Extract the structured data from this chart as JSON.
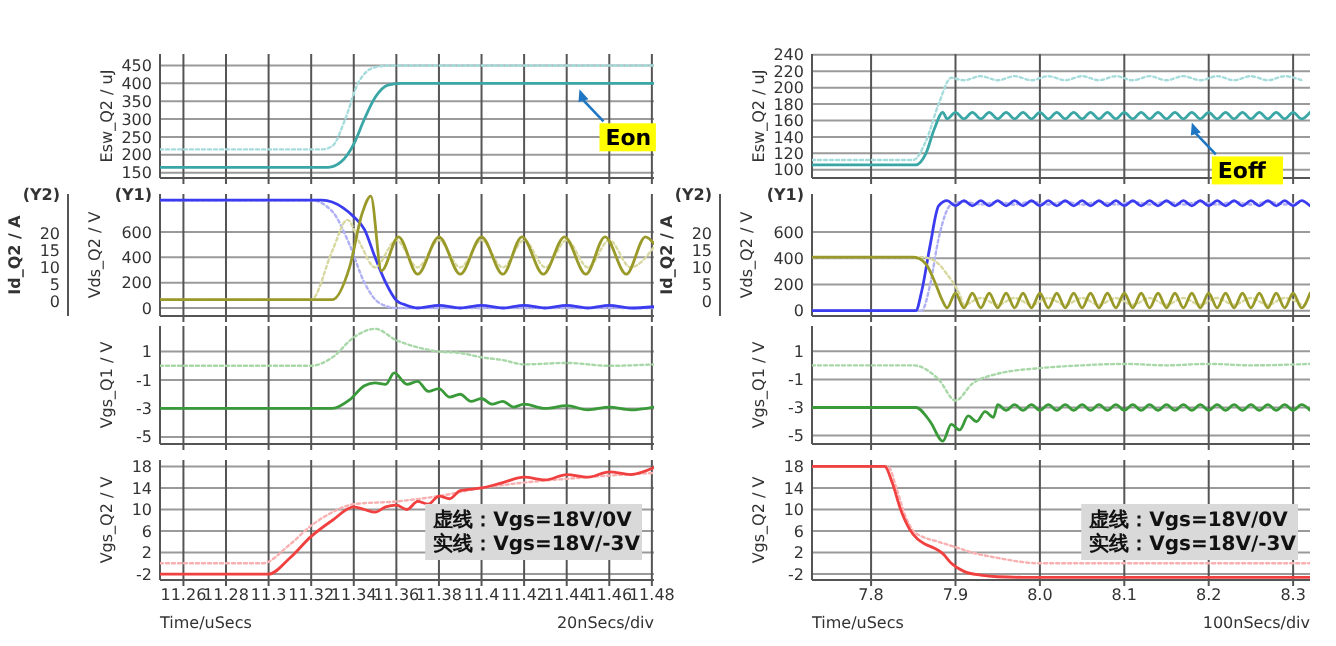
{
  "chart_data": [
    {
      "type": "line",
      "ylabel": "Esw_Q2 / uJ",
      "xlim": [
        11.249,
        11.481
      ],
      "xticks": [
        11.26,
        11.28,
        11.3,
        11.32,
        11.34,
        11.36,
        11.38,
        11.4,
        11.42,
        11.44,
        11.46,
        11.48
      ],
      "ylim": [
        135,
        482
      ],
      "yticks": [
        150,
        200,
        250,
        300,
        350,
        400,
        450
      ],
      "grid": true,
      "tick_labels": "y",
      "series": [
        {
          "color": "#a6dcdc",
          "line_style": "dotted",
          "x": [
            11.249,
            11.325,
            11.33,
            11.336,
            11.342,
            11.35,
            11.358,
            11.481
          ],
          "values": [
            215,
            215,
            225,
            300,
            400,
            445,
            450,
            450
          ]
        },
        {
          "color": "#3aa6a6",
          "line_style": "solid",
          "x": [
            11.249,
            11.328,
            11.334,
            11.34,
            11.345,
            11.35,
            11.356,
            11.362,
            11.481
          ],
          "values": [
            165,
            165,
            180,
            230,
            300,
            360,
            395,
            400,
            400
          ]
        }
      ],
      "annotations": [
        {
          "text": "Eon",
          "x": 11.446,
          "y": 400
        }
      ]
    },
    {
      "type": "line",
      "ylabel": "Vds_Q2 / V",
      "y2label": "Id_Q2 / A",
      "xlim": [
        11.249,
        11.481
      ],
      "xticks": [
        11.26,
        11.28,
        11.3,
        11.32,
        11.34,
        11.36,
        11.38,
        11.4,
        11.42,
        11.44,
        11.46,
        11.48
      ],
      "ylim": [
        -63,
        899
      ],
      "yticks": [
        0,
        200,
        400,
        600
      ],
      "y2lim": [
        -4.3,
        31.6
      ],
      "y2ticks": [
        0,
        5,
        10,
        15,
        20
      ],
      "grid": true,
      "tick_labels": "y",
      "series": [
        {
          "color": "#b0b0f5",
          "line_style": "dotted",
          "x": [
            11.249,
            11.32,
            11.33,
            11.338,
            11.345,
            11.352,
            11.36,
            11.481
          ],
          "values": [
            850,
            850,
            760,
            500,
            200,
            40,
            0,
            0
          ]
        },
        {
          "color": "#3b3bf0",
          "line_style": "solid",
          "x": [
            11.249,
            11.325,
            11.335,
            11.34,
            11.345,
            11.35,
            11.355,
            11.36,
            11.365,
            11.37,
            11.38,
            11.39,
            11.4,
            11.41,
            11.42,
            11.43,
            11.44,
            11.45,
            11.46,
            11.47,
            11.481
          ],
          "values": [
            850,
            850,
            790,
            720,
            620,
            400,
            200,
            60,
            20,
            0,
            20,
            0,
            20,
            0,
            20,
            0,
            20,
            0,
            20,
            0,
            10
          ]
        },
        {
          "color": "#d8d8a0",
          "line_style": "dotted",
          "axis": "y2",
          "x": [
            11.249,
            11.32,
            11.33,
            11.337,
            11.343,
            11.35,
            11.36,
            11.37,
            11.38,
            11.39,
            11.4,
            11.41,
            11.42,
            11.43,
            11.44,
            11.45,
            11.46,
            11.47,
            11.481
          ],
          "values": [
            0.5,
            0.5,
            15,
            24,
            17,
            10,
            18,
            10,
            18,
            10,
            18,
            10,
            18,
            10,
            18,
            10,
            18,
            10,
            16
          ]
        },
        {
          "color": "#9a9a2a",
          "line_style": "solid",
          "axis": "y2",
          "x": [
            11.249,
            11.33,
            11.338,
            11.344,
            11.348,
            11.353,
            11.361,
            11.37,
            11.38,
            11.39,
            11.4,
            11.41,
            11.419,
            11.429,
            11.439,
            11.449,
            11.458,
            11.468,
            11.477,
            11.481
          ],
          "values": [
            0.5,
            0.5,
            10,
            26,
            31,
            9,
            19,
            8,
            19,
            8,
            19,
            8,
            19,
            8,
            19,
            8,
            19,
            8,
            19,
            17
          ]
        }
      ],
      "annotations": [
        "(Y2)",
        "(Y1)"
      ]
    },
    {
      "type": "line",
      "ylabel": "Vgs_Q1 / V",
      "xlim": [
        11.249,
        11.481
      ],
      "xticks": [
        11.26,
        11.28,
        11.3,
        11.32,
        11.34,
        11.36,
        11.38,
        11.4,
        11.42,
        11.44,
        11.46,
        11.48
      ],
      "ylim": [
        -5.5,
        2.8
      ],
      "yticks": [
        1,
        -1,
        -3,
        -5
      ],
      "grid": true,
      "tick_labels": "y",
      "series": [
        {
          "color": "#a8d8a8",
          "line_style": "dotted",
          "x": [
            11.249,
            11.32,
            11.33,
            11.34,
            11.35,
            11.36,
            11.37,
            11.38,
            11.39,
            11.4,
            11.41,
            11.42,
            11.44,
            11.46,
            11.481
          ],
          "values": [
            0,
            0,
            0.6,
            2,
            2.6,
            1.8,
            1.3,
            1,
            0.9,
            0.6,
            0.4,
            0.1,
            0.2,
            0,
            0.1
          ]
        },
        {
          "color": "#3a9a3a",
          "line_style": "solid",
          "x": [
            11.249,
            11.33,
            11.338,
            11.345,
            11.35,
            11.355,
            11.359,
            11.365,
            11.37,
            11.375,
            11.38,
            11.385,
            11.39,
            11.395,
            11.4,
            11.405,
            11.41,
            11.415,
            11.42,
            11.43,
            11.44,
            11.45,
            11.46,
            11.47,
            11.481
          ],
          "values": [
            -3,
            -3,
            -2.4,
            -1.4,
            -1.2,
            -1.3,
            -0.5,
            -1.3,
            -1.1,
            -1.8,
            -1.6,
            -2.2,
            -2,
            -2.5,
            -2.3,
            -2.7,
            -2.5,
            -2.9,
            -2.7,
            -3,
            -2.8,
            -3.1,
            -2.9,
            -3.1,
            -2.9
          ]
        }
      ]
    },
    {
      "type": "line",
      "ylabel": "Vgs_Q2 / V",
      "xlabel": "Time/uSecs",
      "xlim": [
        11.249,
        11.481
      ],
      "xticks": [
        11.26,
        11.28,
        11.3,
        11.32,
        11.34,
        11.36,
        11.38,
        11.4,
        11.42,
        11.44,
        11.46,
        11.48
      ],
      "ylim": [
        -3.1,
        19.2
      ],
      "yticks": [
        18,
        14,
        10,
        6,
        2,
        -2
      ],
      "grid": true,
      "series": [
        {
          "color": "#f8b0b0",
          "line_style": "dotted",
          "x": [
            11.249,
            11.297,
            11.31,
            11.32,
            11.33,
            11.34,
            11.36,
            11.38,
            11.4,
            11.42,
            11.44,
            11.46,
            11.481
          ],
          "values": [
            0,
            0,
            3.5,
            7,
            9.5,
            11,
            11.5,
            12.5,
            14,
            15,
            15.7,
            16.3,
            16.8
          ]
        },
        {
          "color": "#f04040",
          "line_style": "solid",
          "x": [
            11.249,
            11.3,
            11.31,
            11.32,
            11.33,
            11.34,
            11.345,
            11.35,
            11.355,
            11.36,
            11.365,
            11.37,
            11.375,
            11.38,
            11.385,
            11.39,
            11.4,
            11.41,
            11.42,
            11.43,
            11.44,
            11.45,
            11.46,
            11.47,
            11.481
          ],
          "values": [
            -2,
            -2,
            1,
            5,
            8,
            10.5,
            10,
            9.5,
            10.5,
            10.8,
            10,
            11.5,
            11,
            12.5,
            12,
            13.5,
            14,
            15,
            16,
            15.5,
            16.5,
            16,
            17,
            16.5,
            17.8
          ]
        }
      ],
      "annotations": [
        "虚线：Vgs=18V/0V",
        "实线：Vgs=18V/-3V",
        "20nSecs/div"
      ]
    },
    {
      "type": "line",
      "ylabel": "Esw_Q2 / uJ",
      "xlim": [
        7.73,
        8.32
      ],
      "xticks": [
        7.8,
        7.9,
        8,
        8.1,
        8.2,
        8.3
      ],
      "ylim": [
        90,
        241
      ],
      "yticks": [
        100,
        120,
        140,
        160,
        180,
        200,
        220,
        240
      ],
      "grid": true,
      "tick_labels": "y",
      "series": [
        {
          "color": "#a6dcdc",
          "line_style": "dotted",
          "x": [
            7.73,
            7.85,
            7.865,
            7.88,
            7.895,
            7.91,
            7.93,
            7.95,
            7.97,
            7.99,
            8.01,
            8.03,
            8.05,
            8.07,
            8.09,
            8.11,
            8.13,
            8.15,
            8.17,
            8.19,
            8.21,
            8.23,
            8.25,
            8.27,
            8.29,
            8.31
          ],
          "values": [
            112,
            112,
            135,
            180,
            212,
            209,
            214,
            209,
            214,
            209,
            214,
            209,
            214,
            209,
            214,
            209,
            214,
            209,
            214,
            209,
            214,
            209,
            214,
            209,
            214,
            209
          ]
        },
        {
          "color": "#3aa6a6",
          "line_style": "solid",
          "x": [
            7.73,
            7.853,
            7.865,
            7.875,
            7.885,
            7.89,
            7.9,
            7.91,
            7.92,
            7.93,
            7.94,
            7.95,
            7.96,
            7.97,
            7.98,
            7.99,
            8,
            8.01,
            8.02,
            8.03,
            8.04,
            8.05,
            8.06,
            8.07,
            8.08,
            8.09,
            8.1,
            8.11,
            8.12,
            8.13,
            8.14,
            8.15,
            8.16,
            8.17,
            8.18,
            8.19,
            8.2,
            8.21,
            8.22,
            8.23,
            8.24,
            8.25,
            8.26,
            8.27,
            8.28,
            8.29,
            8.3,
            8.31,
            8.32
          ],
          "values": [
            106,
            106,
            120,
            150,
            170,
            162,
            170,
            162,
            170,
            162,
            170,
            162,
            170,
            162,
            170,
            162,
            170,
            162,
            170,
            162,
            170,
            162,
            170,
            162,
            170,
            162,
            170,
            162,
            170,
            162,
            170,
            162,
            170,
            162,
            170,
            162,
            170,
            162,
            170,
            162,
            170,
            162,
            170,
            162,
            170,
            162,
            170,
            162,
            170
          ]
        }
      ],
      "annotations": [
        {
          "text": "Eoff",
          "x": 8.18,
          "y": 165
        }
      ]
    },
    {
      "type": "line",
      "ylabel": "Vds_Q2 / V",
      "y2label": "Id_Q2 / A",
      "xlim": [
        7.73,
        8.32
      ],
      "xticks": [
        7.8,
        7.9,
        8,
        8.1,
        8.2,
        8.3
      ],
      "ylim": [
        -41,
        890
      ],
      "yticks": [
        0,
        200,
        400,
        600
      ],
      "y2lim": [
        -4.3,
        31.6
      ],
      "y2ticks": [
        0,
        5,
        10,
        15,
        20
      ],
      "grid": true,
      "tick_labels": "y",
      "series": [
        {
          "color": "#b0b0f5",
          "line_style": "dotted",
          "x": [
            7.73,
            7.86,
            7.87,
            7.88,
            7.895,
            7.91,
            7.93,
            7.95,
            7.97,
            7.99,
            8.01,
            8.03,
            8.05,
            8.07,
            8.09,
            8.11,
            8.13,
            8.15,
            8.17,
            8.19,
            8.21,
            8.23,
            8.25,
            8.27,
            8.29,
            8.31
          ],
          "values": [
            0,
            0,
            200,
            550,
            810,
            830,
            810,
            830,
            810,
            830,
            810,
            830,
            810,
            830,
            810,
            830,
            810,
            830,
            810,
            830,
            810,
            830,
            810,
            830,
            810,
            830
          ]
        },
        {
          "color": "#3b3bf0",
          "line_style": "solid",
          "x": [
            7.73,
            7.853,
            7.86,
            7.87,
            7.88,
            7.89,
            7.9,
            7.91,
            7.92,
            7.93,
            7.94,
            7.95,
            7.96,
            7.97,
            7.98,
            7.99,
            8,
            8.01,
            8.02,
            8.03,
            8.04,
            8.05,
            8.06,
            8.07,
            8.08,
            8.09,
            8.1,
            8.11,
            8.12,
            8.13,
            8.14,
            8.15,
            8.16,
            8.17,
            8.18,
            8.19,
            8.2,
            8.21,
            8.22,
            8.23,
            8.24,
            8.25,
            8.26,
            8.27,
            8.28,
            8.29,
            8.3,
            8.31,
            8.32
          ],
          "values": [
            0,
            0,
            150,
            500,
            800,
            840,
            800,
            840,
            800,
            840,
            800,
            840,
            800,
            840,
            800,
            840,
            800,
            840,
            800,
            840,
            800,
            840,
            800,
            840,
            800,
            840,
            800,
            840,
            800,
            840,
            800,
            840,
            800,
            840,
            800,
            840,
            800,
            840,
            800,
            840,
            800,
            840,
            800,
            840,
            800,
            840,
            800,
            840,
            800
          ]
        },
        {
          "color": "#d8d8a0",
          "line_style": "dotted",
          "axis": "y2",
          "x": [
            7.73,
            7.86,
            7.875,
            7.89,
            7.905,
            7.91,
            7.93,
            7.95,
            7.97,
            7.99,
            8.01,
            8.03,
            8.05,
            8.07,
            8.09,
            8.11,
            8.13,
            8.15,
            8.17,
            8.19,
            8.21,
            8.23,
            8.25,
            8.27,
            8.29,
            8.31
          ],
          "values": [
            13,
            13,
            12,
            8,
            2,
            -1,
            1,
            -1,
            1,
            -1,
            1,
            -1,
            1,
            -1,
            1,
            -1,
            1,
            -1,
            1,
            -1,
            1,
            -1,
            1,
            -1,
            1,
            -1
          ]
        },
        {
          "color": "#9a9a2a",
          "line_style": "solid",
          "axis": "y2",
          "x": [
            7.73,
            7.85,
            7.865,
            7.875,
            7.885,
            7.89,
            7.9,
            7.91,
            7.92,
            7.93,
            7.94,
            7.95,
            7.96,
            7.97,
            7.98,
            7.99,
            8,
            8.01,
            8.02,
            8.03,
            8.04,
            8.05,
            8.06,
            8.07,
            8.08,
            8.09,
            8.1,
            8.11,
            8.12,
            8.13,
            8.14,
            8.15,
            8.16,
            8.17,
            8.18,
            8.19,
            8.2,
            8.21,
            8.22,
            8.23,
            8.24,
            8.25,
            8.26,
            8.27,
            8.28,
            8.29,
            8.3,
            8.31,
            8.32
          ],
          "values": [
            13,
            13,
            11,
            6,
            0,
            -1.9,
            2.4,
            -1.9,
            2.4,
            -1.9,
            2.4,
            -1.9,
            2.4,
            -1.9,
            2.4,
            -1.9,
            2.4,
            -1.9,
            2.4,
            -1.9,
            2.4,
            -1.9,
            2.4,
            -1.9,
            2.4,
            -1.9,
            2.4,
            -1.9,
            2.4,
            -1.9,
            2.4,
            -1.9,
            2.4,
            -1.9,
            2.4,
            -1.9,
            2.4,
            -1.9,
            2.4,
            -1.9,
            2.4,
            -1.9,
            2.4,
            -1.9,
            2.4,
            -1.9,
            2.4,
            -1.9,
            2.4
          ]
        }
      ],
      "annotations": [
        "(Y2)",
        "(Y1)"
      ]
    },
    {
      "type": "line",
      "ylabel": "Vgs_Q1 / V",
      "xlim": [
        7.73,
        8.32
      ],
      "xticks": [
        7.8,
        7.9,
        8,
        8.1,
        8.2,
        8.3
      ],
      "ylim": [
        -5.6,
        2.8
      ],
      "yticks": [
        1,
        -1,
        -3,
        -5
      ],
      "grid": true,
      "tick_labels": "y",
      "series": [
        {
          "color": "#a8d8a8",
          "line_style": "dotted",
          "x": [
            7.73,
            7.85,
            7.88,
            7.9,
            7.92,
            7.95,
            8,
            8.05,
            8.1,
            8.15,
            8.2,
            8.25,
            8.32
          ],
          "values": [
            0,
            0,
            -1,
            -2.5,
            -1.3,
            -0.6,
            -0.2,
            0,
            0.1,
            0,
            0.1,
            0,
            0.1
          ]
        },
        {
          "color": "#3a9a3a",
          "line_style": "solid",
          "x": [
            7.73,
            7.853,
            7.87,
            7.885,
            7.895,
            7.905,
            7.915,
            7.925,
            7.935,
            7.945,
            7.95,
            7.96,
            7.97,
            7.98,
            7.99,
            8,
            8.01,
            8.02,
            8.03,
            8.04,
            8.05,
            8.06,
            8.07,
            8.08,
            8.09,
            8.1,
            8.11,
            8.12,
            8.13,
            8.14,
            8.15,
            8.16,
            8.17,
            8.18,
            8.19,
            8.2,
            8.21,
            8.22,
            8.23,
            8.24,
            8.25,
            8.26,
            8.27,
            8.28,
            8.29,
            8.3,
            8.31,
            8.32
          ],
          "values": [
            -3,
            -3,
            -4,
            -5.4,
            -4.2,
            -4.6,
            -3.6,
            -4,
            -3.3,
            -3.7,
            -2.8,
            -3.2,
            -2.8,
            -3.2,
            -2.8,
            -3.2,
            -2.8,
            -3.2,
            -2.8,
            -3.2,
            -2.8,
            -3.2,
            -2.8,
            -3.2,
            -2.8,
            -3.2,
            -2.8,
            -3.2,
            -2.8,
            -3.2,
            -2.8,
            -3.2,
            -2.8,
            -3.2,
            -2.8,
            -3.2,
            -2.8,
            -3.2,
            -2.8,
            -3.2,
            -2.8,
            -3.2,
            -2.8,
            -3.2,
            -2.8,
            -3.2,
            -2.8,
            -3.2
          ]
        }
      ]
    },
    {
      "type": "line",
      "ylabel": "Vgs_Q2 / V",
      "xlabel": "Time/uSecs",
      "xlim": [
        7.73,
        8.32
      ],
      "xticks": [
        7.8,
        7.9,
        {
          "value": 8,
          "label": "8.0"
        },
        8.1,
        8.2,
        8.3
      ],
      "ylim": [
        -3.1,
        19.2
      ],
      "yticks": [
        18,
        14,
        10,
        6,
        2,
        -2
      ],
      "grid": true,
      "series": [
        {
          "color": "#f8b0b0",
          "line_style": "dotted",
          "x": [
            7.73,
            7.82,
            7.83,
            7.84,
            7.85,
            7.86,
            7.88,
            7.9,
            7.92,
            7.95,
            8,
            8.32
          ],
          "values": [
            18,
            18,
            14,
            9,
            6,
            5,
            4,
            3,
            2,
            1,
            0,
            0
          ]
        },
        {
          "color": "#f04040",
          "line_style": "solid",
          "x": [
            7.73,
            7.816,
            7.825,
            7.835,
            7.845,
            7.855,
            7.865,
            7.875,
            7.885,
            7.895,
            7.91,
            7.93,
            7.95,
            7.98,
            8.32
          ],
          "values": [
            18,
            18,
            15,
            10,
            6.5,
            4.5,
            3.5,
            2.8,
            1.8,
            0,
            -1.5,
            -2.2,
            -2.5,
            -2.6,
            -2.6
          ]
        }
      ],
      "annotations": [
        "虚线：Vgs=18V/0V",
        "实线：Vgs=18V/-3V",
        "100nSecs/div"
      ]
    }
  ]
}
